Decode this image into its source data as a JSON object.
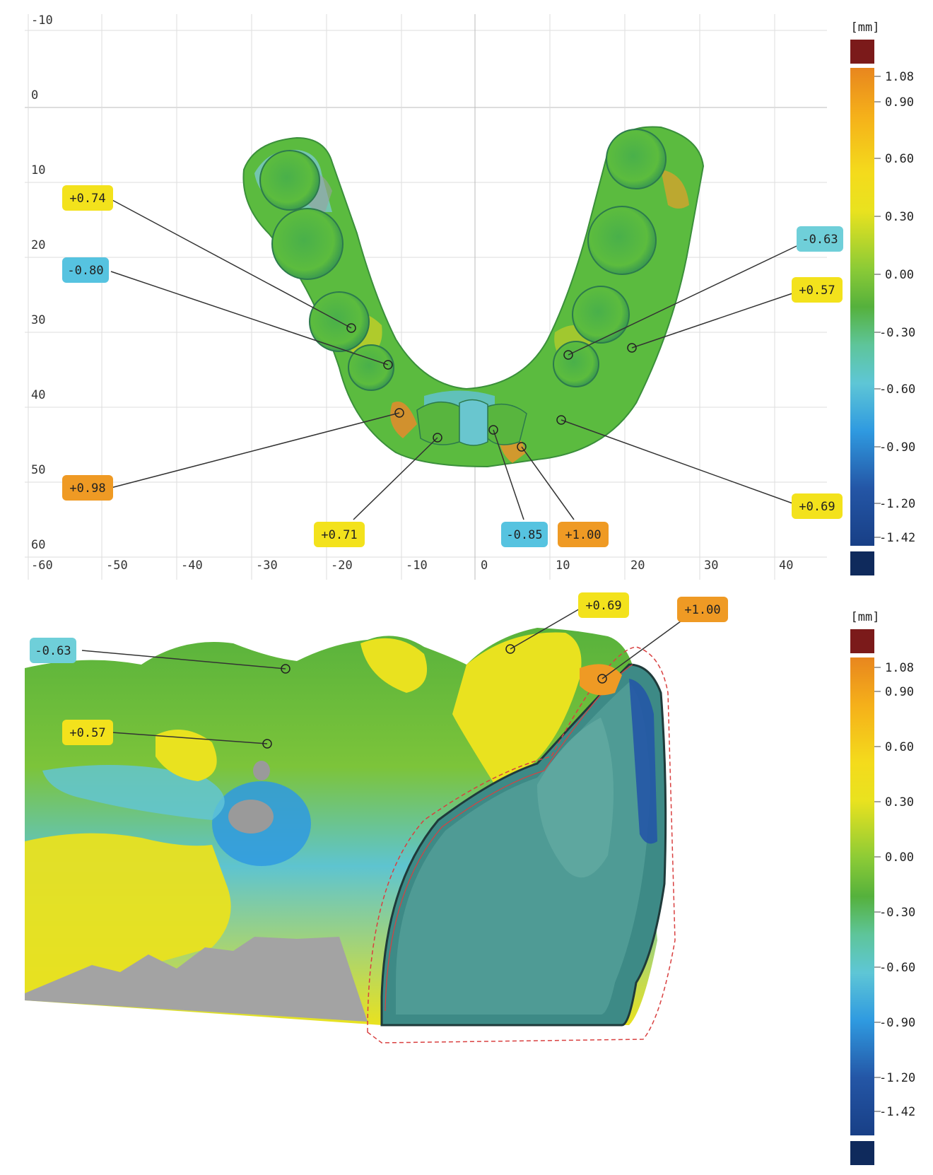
{
  "units_label": "[mm]",
  "color_scale": {
    "labels": [
      "1.08",
      "0.90",
      "0.60",
      "0.30",
      "0.00",
      "-0.30",
      "-0.60",
      "-0.90",
      "-1.20",
      "-1.42"
    ],
    "values": [
      1.08,
      0.9,
      0.6,
      0.3,
      0.0,
      -0.3,
      -0.6,
      -0.9,
      -1.2,
      -1.42
    ],
    "over_color": "#7b1a1a",
    "under_color": "#0f2a5c",
    "gradient_colors": [
      "#e8861e",
      "#f5c71a",
      "#e9e21f",
      "#9fd13a",
      "#58b23c",
      "#5cc6a0",
      "#5ec4d8",
      "#2f9ae0",
      "#2456a6",
      "#183f86"
    ]
  },
  "top_panel": {
    "x_ticks": [
      "-60",
      "-50",
      "-40",
      "-30",
      "-20",
      "-10",
      "0",
      "10",
      "20",
      "30",
      "40"
    ],
    "y_ticks": [
      "-10",
      "0",
      "10",
      "20",
      "30",
      "40",
      "50",
      "60"
    ],
    "callouts": [
      {
        "label": "+0.74",
        "value": 0.74,
        "color": "#f3e21c"
      },
      {
        "label": "-0.80",
        "value": -0.8,
        "color": "#56c3e0"
      },
      {
        "label": "+0.98",
        "value": 0.98,
        "color": "#ef9a24"
      },
      {
        "label": "+0.71",
        "value": 0.71,
        "color": "#f3e21c"
      },
      {
        "label": "-0.85",
        "value": -0.85,
        "color": "#56c3e0"
      },
      {
        "label": "+1.00",
        "value": 1.0,
        "color": "#ef9a24"
      },
      {
        "label": "-0.63",
        "value": -0.63,
        "color": "#6fcfd9"
      },
      {
        "label": "+0.57",
        "value": 0.57,
        "color": "#f3e21c"
      },
      {
        "label": "+0.69",
        "value": 0.69,
        "color": "#f3e21c"
      }
    ]
  },
  "bottom_panel": {
    "callouts": [
      {
        "label": "-0.63",
        "value": -0.63,
        "color": "#6fcfd9"
      },
      {
        "label": "+0.57",
        "value": 0.57,
        "color": "#f3e21c"
      },
      {
        "label": "+0.69",
        "value": 0.69,
        "color": "#f3e21c"
      },
      {
        "label": "+1.00",
        "value": 1.0,
        "color": "#ef9a24"
      }
    ]
  }
}
